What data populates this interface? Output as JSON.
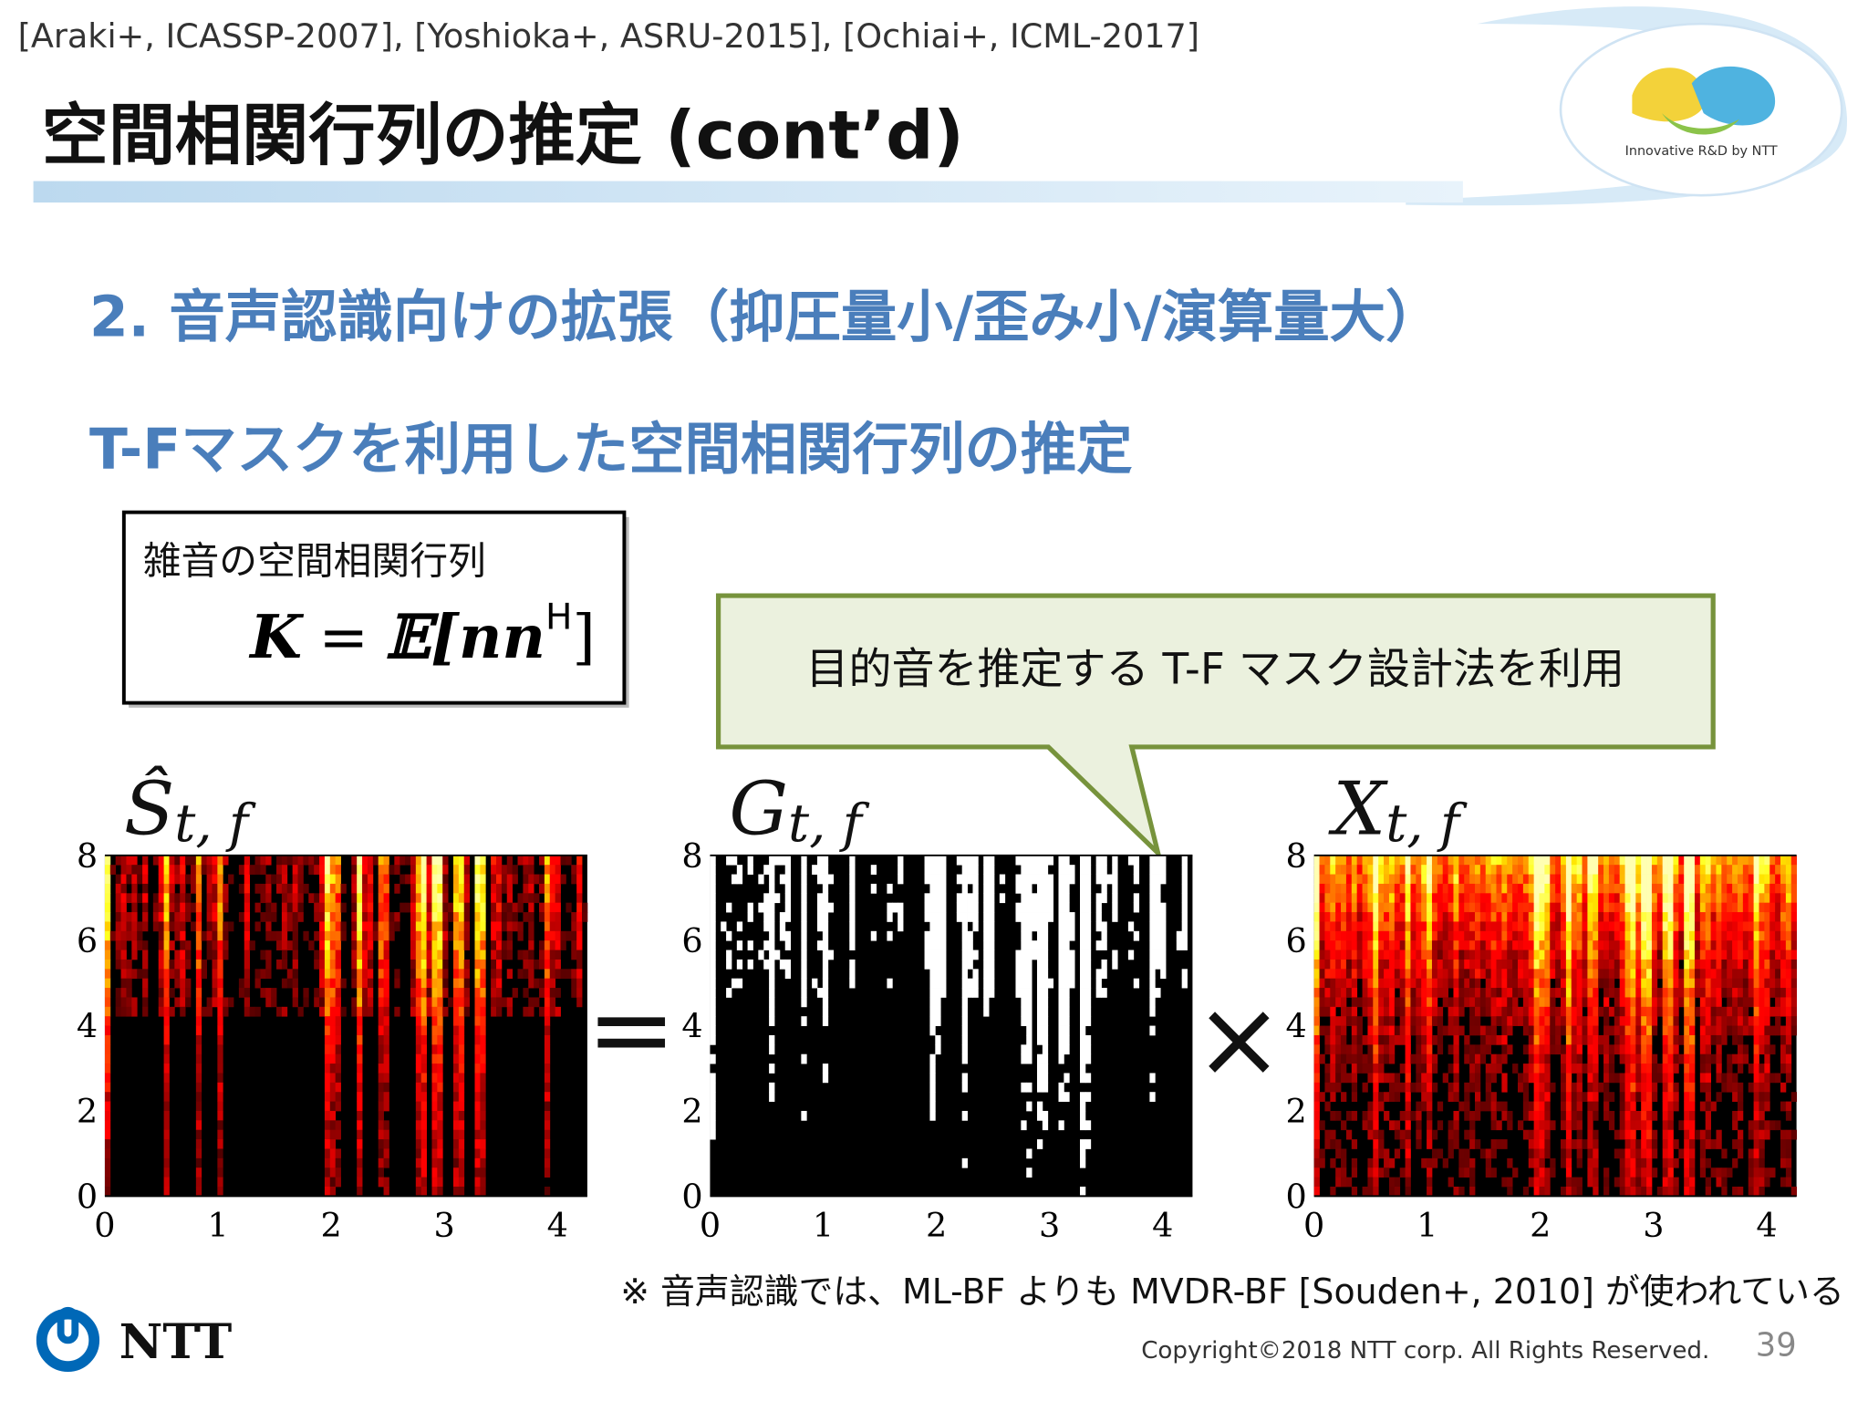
{
  "header": {
    "references": "[Araki+, ICASSP-2007], [Yoshioka+, ASRU-2015], [Ochiai+, ICML-2017]",
    "title": "空間相関行列の推定 (cont’d)",
    "logo_tagline": "Innovative R&D by NTT"
  },
  "heading": "2. 音声認識向けの拡張（抑圧量小/歪み小/演算量大）",
  "subheading": "T-Fマスクを利用した空間相関行列の推定",
  "box": {
    "label": "雑音の空間相関行列",
    "formula": {
      "lhs": "K",
      "eq": "=",
      "rhs": "𝔼[nn",
      "sup": "H",
      "close": "]"
    }
  },
  "callout": "目的音を推定する T-F マスク設計法を利用",
  "panels": [
    {
      "symbol": "Ŝ",
      "sub": "t, f"
    },
    {
      "symbol": "G",
      "sub": "t, f"
    },
    {
      "symbol": "X",
      "sub": "t, f"
    }
  ],
  "operators": [
    "=",
    "×"
  ],
  "axes": {
    "xticks": [
      0,
      1,
      2,
      3,
      4
    ],
    "yticks": [
      0,
      2,
      4,
      6,
      8
    ]
  },
  "note": "※ 音声認識では、ML-BF よりも MVDR-BF [Souden+, 2010] が使われている",
  "footer": {
    "brand": "NTT",
    "copyright": "Copyright©2018  NTT corp. All Rights Reserved.",
    "page": "39"
  }
}
